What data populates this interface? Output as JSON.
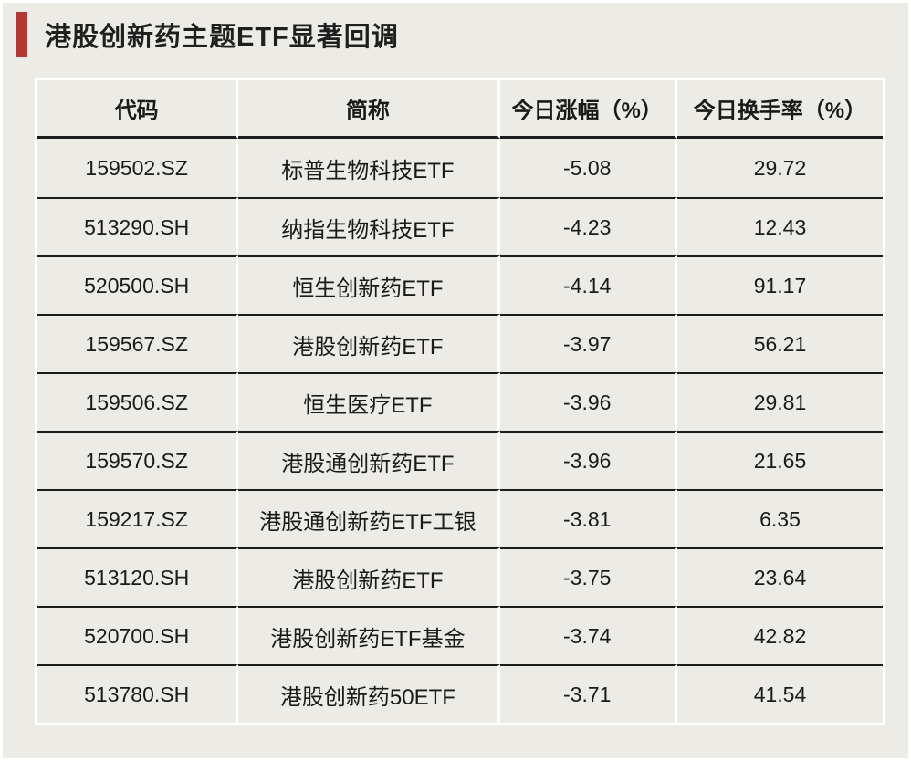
{
  "page": {
    "title": "港股创新药主题ETF显著回调",
    "accent_color": "#b23a34",
    "background_color": "#edebe5"
  },
  "table": {
    "columns": [
      "代码",
      "简称",
      "今日涨幅（%）",
      "今日换手率（%）"
    ],
    "rows": [
      {
        "code": "159502.SZ",
        "name": "标普生物科技ETF",
        "change": "-5.08",
        "turnover": "29.72"
      },
      {
        "code": "513290.SH",
        "name": "纳指生物科技ETF",
        "change": "-4.23",
        "turnover": "12.43"
      },
      {
        "code": "520500.SH",
        "name": "恒生创新药ETF",
        "change": "-4.14",
        "turnover": "91.17"
      },
      {
        "code": "159567.SZ",
        "name": "港股创新药ETF",
        "change": "-3.97",
        "turnover": "56.21"
      },
      {
        "code": "159506.SZ",
        "name": "恒生医疗ETF",
        "change": "-3.96",
        "turnover": "29.81"
      },
      {
        "code": "159570.SZ",
        "name": "港股通创新药ETF",
        "change": "-3.96",
        "turnover": "21.65"
      },
      {
        "code": "159217.SZ",
        "name": "港股通创新药ETF工银",
        "change": "-3.81",
        "turnover": "6.35"
      },
      {
        "code": "513120.SH",
        "name": "港股创新药ETF",
        "change": "-3.75",
        "turnover": "23.64"
      },
      {
        "code": "520700.SH",
        "name": "港股创新药ETF基金",
        "change": "-3.74",
        "turnover": "42.82"
      },
      {
        "code": "513780.SH",
        "name": "港股创新药50ETF",
        "change": "-3.71",
        "turnover": "41.54"
      }
    ]
  }
}
